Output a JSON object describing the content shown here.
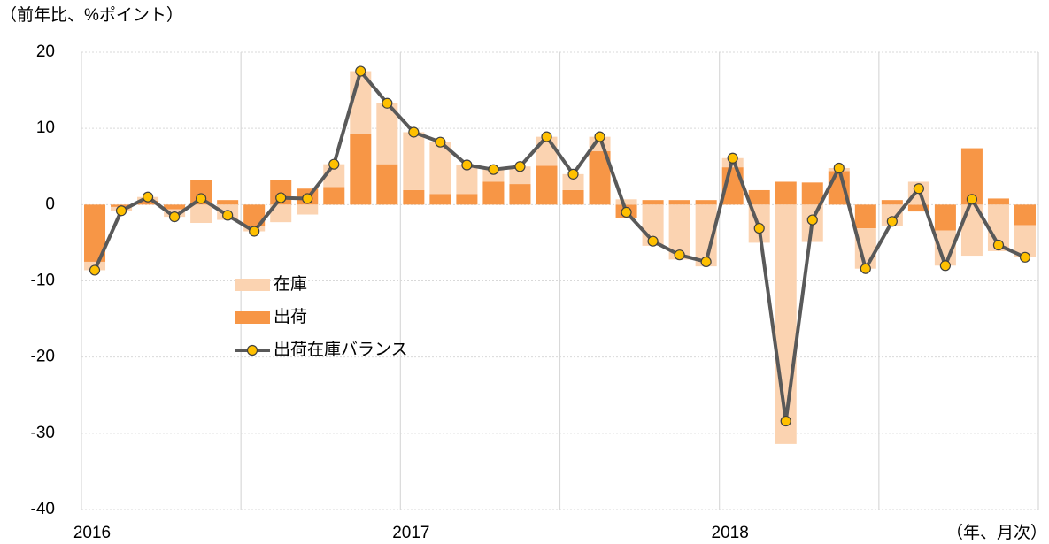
{
  "chart_data": {
    "type": "bar",
    "stacked": true,
    "y_label": "（前年比、%ポイント）",
    "x_label": "（年、月次）",
    "categories": [
      "2016",
      null,
      null,
      null,
      null,
      null,
      null,
      null,
      null,
      null,
      null,
      null,
      "2017",
      null,
      null,
      null,
      null,
      null,
      null,
      null,
      null,
      null,
      null,
      null,
      "2018",
      null,
      null,
      null,
      null,
      null,
      null,
      null,
      null,
      null,
      null,
      null
    ],
    "series": [
      {
        "name": "在庫",
        "type": "bar",
        "color": "#fbd3b1",
        "values": [
          -1.1,
          -0.5,
          0.5,
          -1.0,
          -2.4,
          -2.0,
          -0.7,
          -2.3,
          -1.3,
          3.0,
          8.2,
          8.0,
          7.6,
          6.8,
          3.8,
          1.6,
          2.3,
          3.8,
          2.1,
          1.9,
          0.7,
          -5.4,
          -7.2,
          -8.1,
          1.2,
          -5.0,
          -31.4,
          -4.9,
          0.4,
          -5.3,
          -2.8,
          3.0,
          -4.6,
          -6.7,
          -6.1,
          -4.2
        ]
      },
      {
        "name": "出荷",
        "type": "bar",
        "color": "#f79646",
        "values": [
          -7.5,
          -0.3,
          0.5,
          -0.6,
          3.2,
          0.6,
          -2.8,
          3.2,
          2.1,
          2.3,
          9.3,
          5.3,
          1.9,
          1.4,
          1.4,
          3.0,
          2.7,
          5.1,
          1.9,
          7.0,
          -1.7,
          0.6,
          0.6,
          0.6,
          4.9,
          1.9,
          3.0,
          2.9,
          4.4,
          -3.1,
          0.6,
          -0.9,
          -3.4,
          7.4,
          0.8,
          -2.7
        ]
      },
      {
        "name": "出荷在庫バランス",
        "type": "line",
        "color": "#595959",
        "marker_color": "#ffc000",
        "values": [
          -8.6,
          -0.8,
          1.0,
          -1.6,
          0.8,
          -1.4,
          -3.5,
          0.9,
          0.8,
          5.3,
          17.5,
          13.3,
          9.5,
          8.2,
          5.2,
          4.6,
          5.0,
          8.9,
          4.0,
          8.9,
          -1.0,
          -4.8,
          -6.6,
          -7.5,
          6.1,
          -3.1,
          -28.4,
          -2.0,
          4.8,
          -8.4,
          -2.2,
          2.1,
          -8.0,
          0.7,
          -5.3,
          -6.9
        ]
      }
    ],
    "ylim": [
      -40,
      20
    ],
    "yticks": [
      20,
      10,
      0,
      -10,
      -20,
      -30,
      -40
    ],
    "grid": true,
    "legend": "left"
  }
}
